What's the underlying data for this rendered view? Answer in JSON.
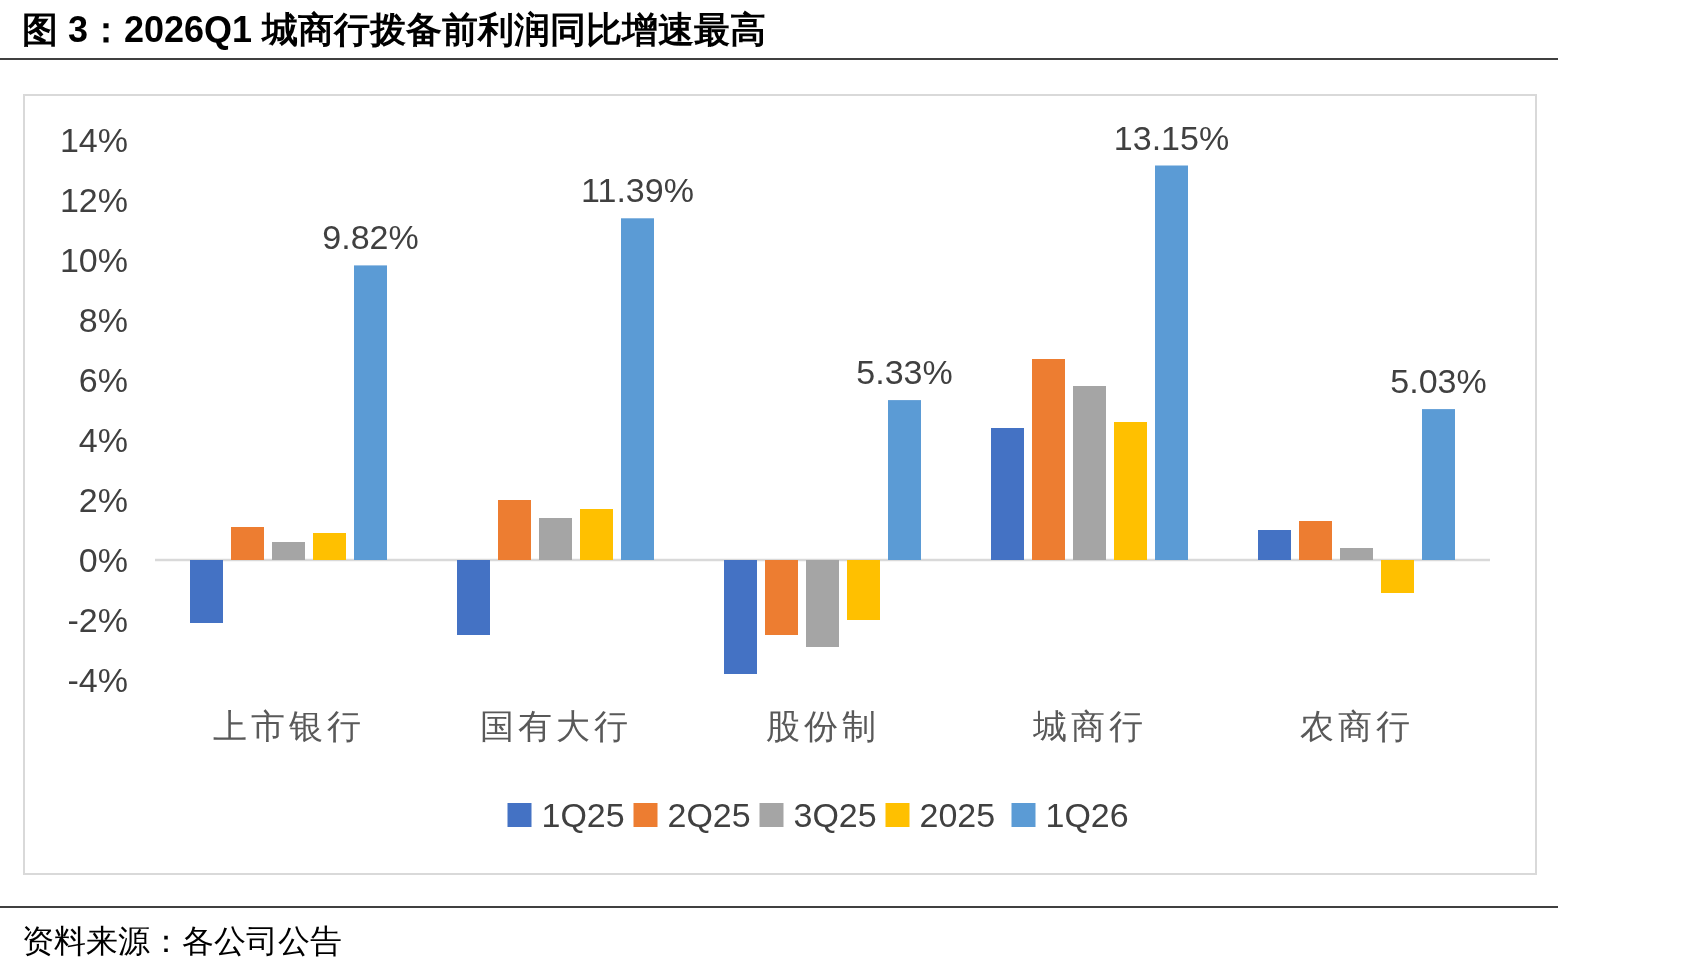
{
  "chart_data": {
    "type": "bar",
    "title": "图 3：2026Q1 城商行拨备前利润同比增速最高",
    "annotations": [
      "资料来源：各公司公告"
    ],
    "categories": [
      "上市银行",
      "国有大行",
      "股份制",
      "城商行",
      "农商行"
    ],
    "series": [
      {
        "name": "1Q25",
        "color": "#4472c4",
        "values": [
          -2.1,
          -2.5,
          -3.8,
          4.4,
          1.0
        ]
      },
      {
        "name": "2Q25",
        "color": "#ed7d31",
        "values": [
          1.1,
          2.0,
          -2.5,
          6.7,
          1.3
        ]
      },
      {
        "name": "3Q25",
        "color": "#a5a5a5",
        "values": [
          0.6,
          1.4,
          -2.9,
          5.8,
          0.4
        ]
      },
      {
        "name": "2025",
        "color": "#ffc000",
        "values": [
          0.9,
          1.7,
          -2.0,
          4.6,
          -1.1
        ]
      },
      {
        "name": "1Q26",
        "color": "#5b9bd5",
        "values": [
          9.82,
          11.39,
          5.33,
          13.15,
          5.03
        ],
        "value_labels": [
          "9.82%",
          "11.39%",
          "5.33%",
          "13.15%",
          "5.03%"
        ]
      }
    ],
    "ylim": [
      -4,
      14
    ],
    "yticks": [
      {
        "value": -4,
        "label": "-4%"
      },
      {
        "value": -2,
        "label": "-2%"
      },
      {
        "value": 0,
        "label": "0%"
      },
      {
        "value": 2,
        "label": "2%"
      },
      {
        "value": 4,
        "label": "4%"
      },
      {
        "value": 6,
        "label": "6%"
      },
      {
        "value": 8,
        "label": "8%"
      },
      {
        "value": 10,
        "label": "10%"
      },
      {
        "value": 12,
        "label": "12%"
      },
      {
        "value": 14,
        "label": "14%"
      }
    ],
    "legend": "bottom"
  }
}
